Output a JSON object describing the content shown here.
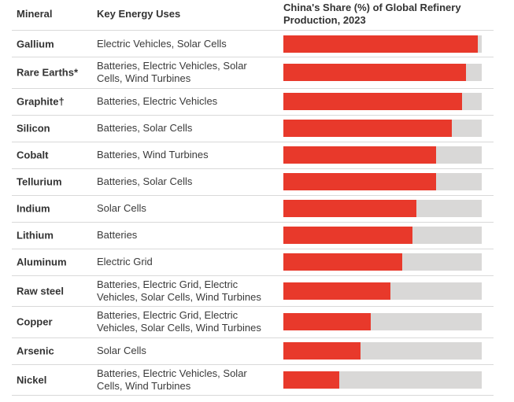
{
  "header": {
    "mineral": "Mineral",
    "uses": "Key Energy Uses",
    "share": "China's Share (%) of Global Refinery Production, 2023"
  },
  "colors": {
    "bar_fill": "#e8392b",
    "bar_track": "#d9d8d7",
    "divider": "#d9d9d9"
  },
  "rows": [
    {
      "mineral": "Gallium",
      "uses": "Electric Vehicles, Solar Cells",
      "share": 98,
      "lines": 1
    },
    {
      "mineral": "Rare Earths*",
      "uses": "Batteries, Electric Vehicles, Solar Cells, Wind Turbines",
      "share": 92,
      "lines": 2
    },
    {
      "mineral": "Graphite†",
      "uses": "Batteries, Electric Vehicles",
      "share": 90,
      "lines": 1
    },
    {
      "mineral": "Silicon",
      "uses": "Batteries, Solar Cells",
      "share": 85,
      "lines": 1
    },
    {
      "mineral": "Cobalt",
      "uses": "Batteries, Wind Turbines",
      "share": 77,
      "lines": 1
    },
    {
      "mineral": "Tellurium",
      "uses": "Batteries, Solar Cells",
      "share": 77,
      "lines": 1
    },
    {
      "mineral": "Indium",
      "uses": "Solar Cells",
      "share": 67,
      "lines": 1
    },
    {
      "mineral": "Lithium",
      "uses": "Batteries",
      "share": 65,
      "lines": 1
    },
    {
      "mineral": "Aluminum",
      "uses": "Electric Grid",
      "share": 60,
      "lines": 1
    },
    {
      "mineral": "Raw steel",
      "uses": "Batteries, Electric Grid, Electric Vehicles, Solar Cells, Wind Turbines",
      "share": 54,
      "lines": 2
    },
    {
      "mineral": "Copper",
      "uses": "Batteries, Electric Grid, Electric Vehicles, Solar Cells, Wind Turbines",
      "share": 44,
      "lines": 2
    },
    {
      "mineral": "Arsenic",
      "uses": "Solar Cells",
      "share": 39,
      "lines": 1
    },
    {
      "mineral": "Nickel",
      "uses": "Batteries, Electric Vehicles, Solar Cells, Wind Turbines",
      "share": 28,
      "lines": 2
    }
  ],
  "chart_data": {
    "type": "bar",
    "orientation": "horizontal",
    "title": "China's Share (%) of Global Refinery Production, 2023",
    "xlabel": "",
    "ylabel": "",
    "xlim": [
      0,
      100
    ],
    "grid": false,
    "legend": "none",
    "categories": [
      "Gallium",
      "Rare Earths*",
      "Graphite†",
      "Silicon",
      "Cobalt",
      "Tellurium",
      "Indium",
      "Lithium",
      "Aluminum",
      "Raw steel",
      "Copper",
      "Arsenic",
      "Nickel"
    ],
    "values": [
      98,
      92,
      90,
      85,
      77,
      77,
      67,
      65,
      60,
      54,
      44,
      39,
      28
    ]
  }
}
